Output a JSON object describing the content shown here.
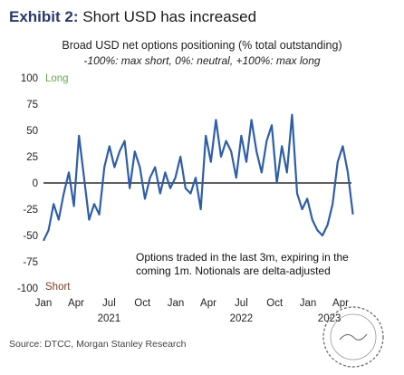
{
  "exhibit": {
    "label": "Exhibit 2:",
    "title": "Short USD has increased"
  },
  "source": "Source: DTCC, Morgan Stanley Research",
  "chart_data": {
    "type": "line",
    "title": "Broad USD net options positioning (% total outstanding)",
    "subtitle": "-100%: max short, 0%: neutral, +100%: max long",
    "ylim": [
      -100,
      100
    ],
    "yticks": [
      100,
      75,
      50,
      25,
      0,
      -25,
      -50,
      -75,
      -100
    ],
    "x_range": [
      "2021-01",
      "2023-05"
    ],
    "xticks": [
      "Jan",
      "Apr",
      "Jul",
      "Oct",
      "Jan",
      "Apr",
      "Jul",
      "Oct",
      "Jan",
      "Apr"
    ],
    "years": [
      "2021",
      "2022",
      "2023"
    ],
    "grid": false,
    "zero_line": true,
    "color_long": "#6aa84f",
    "color_short": "#7b3f26",
    "line_color": "#2f5ea8",
    "annotations": {
      "long": "Long",
      "short": "Short",
      "note_line1": "Options traded in the last 3m, expiring in the",
      "note_line2": "coming 1m. Notionals are delta-adjusted"
    },
    "series": [
      {
        "x": [
          "2021-01-01",
          "2021-01-15",
          "2021-01-29",
          "2021-02-12",
          "2021-02-26",
          "2021-03-12",
          "2021-03-26",
          "2021-04-09",
          "2021-04-23",
          "2021-05-07",
          "2021-05-21",
          "2021-06-04",
          "2021-06-18",
          "2021-07-02",
          "2021-07-16",
          "2021-07-30",
          "2021-08-13",
          "2021-08-27",
          "2021-09-10",
          "2021-09-24",
          "2021-10-08",
          "2021-10-22",
          "2021-11-05",
          "2021-11-19",
          "2021-12-03",
          "2021-12-17",
          "2021-12-31",
          "2022-01-14",
          "2022-01-28",
          "2022-02-11",
          "2022-02-25",
          "2022-03-11",
          "2022-03-25",
          "2022-04-08",
          "2022-04-22",
          "2022-05-06",
          "2022-05-20",
          "2022-06-03",
          "2022-06-17",
          "2022-07-01",
          "2022-07-15",
          "2022-07-29",
          "2022-08-12",
          "2022-08-26",
          "2022-09-09",
          "2022-09-23",
          "2022-10-07",
          "2022-10-21",
          "2022-11-04",
          "2022-11-18",
          "2022-12-02",
          "2022-12-16",
          "2022-12-30",
          "2023-01-13",
          "2023-01-27",
          "2023-02-10",
          "2023-02-24",
          "2023-03-10",
          "2023-03-24",
          "2023-04-07",
          "2023-04-21",
          "2023-05-05"
        ],
        "values": [
          -55,
          -45,
          -20,
          -35,
          -10,
          10,
          -22,
          45,
          5,
          -35,
          -20,
          -30,
          15,
          35,
          15,
          30,
          40,
          -5,
          30,
          15,
          -15,
          5,
          15,
          -10,
          10,
          -5,
          5,
          25,
          -5,
          -10,
          5,
          -25,
          45,
          20,
          60,
          25,
          40,
          30,
          5,
          45,
          20,
          60,
          30,
          10,
          40,
          55,
          0,
          35,
          10,
          65,
          -10,
          -25,
          -15,
          -35,
          -45,
          -50,
          -40,
          -20,
          20,
          35,
          10,
          -30
        ]
      }
    ]
  }
}
